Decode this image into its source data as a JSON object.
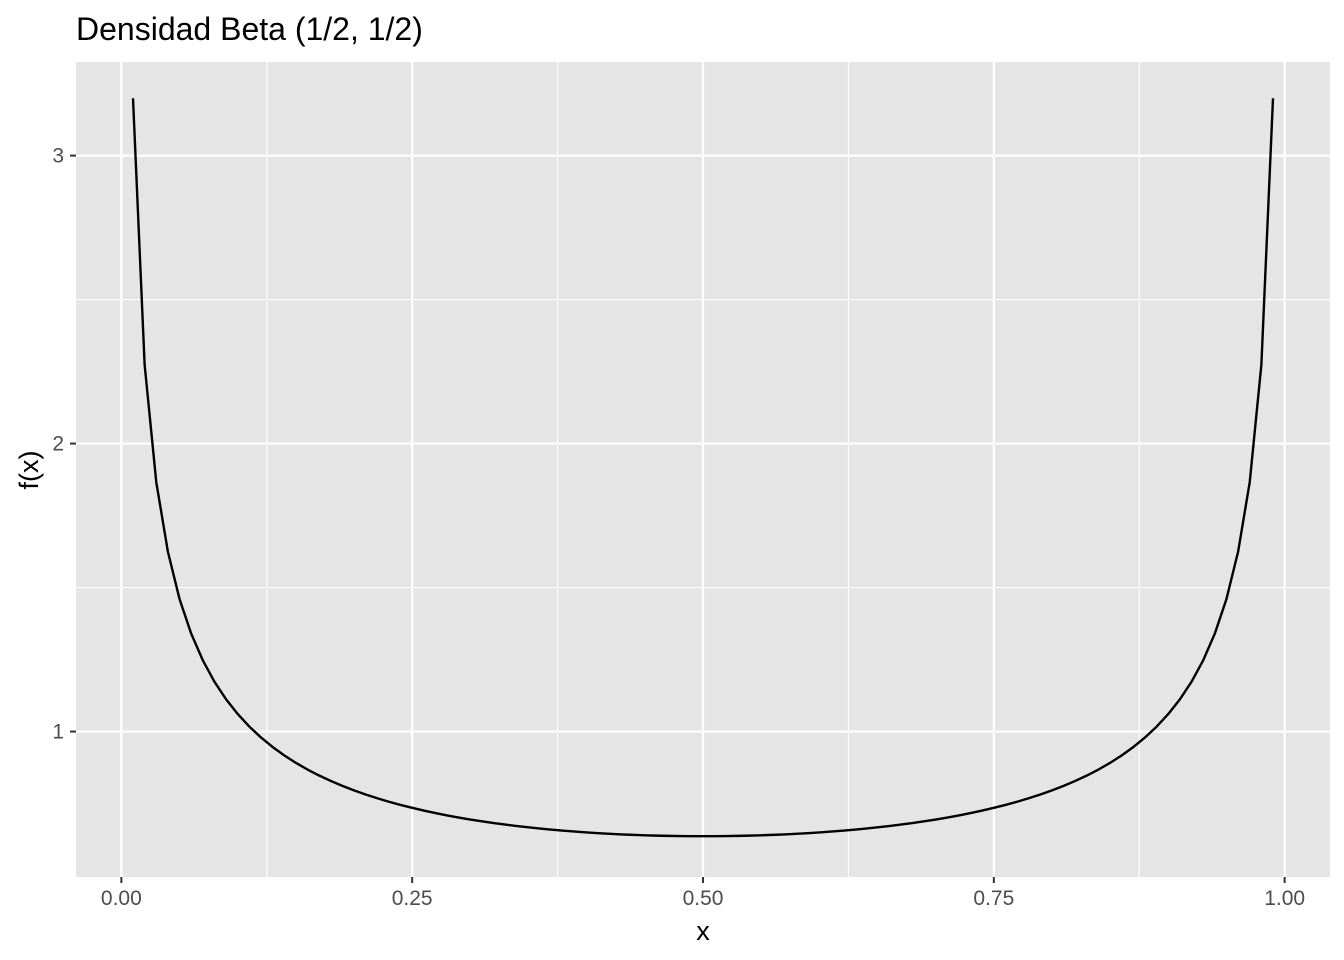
{
  "chart_data": {
    "type": "line",
    "title": "Densidad Beta (1/2, 1/2)",
    "xlabel": "x",
    "ylabel": "f(x)",
    "xlim": [
      -0.039,
      1.039
    ],
    "ylim": [
      0.495,
      3.325
    ],
    "x_ticks": [
      0,
      0.25,
      0.5,
      0.75,
      1
    ],
    "x_tick_labels": [
      "0.00",
      "0.25",
      "0.50",
      "0.75",
      "1.00"
    ],
    "y_ticks": [
      1,
      2,
      3
    ],
    "y_tick_labels": [
      "1",
      "2",
      "3"
    ],
    "grid": true,
    "legend": "none",
    "series": [
      {
        "function": "dbeta(x, 1/2, 1/2)",
        "x_range": [
          0.01,
          0.99
        ],
        "n_points": 99,
        "color": "#000000"
      }
    ]
  },
  "colors": {
    "panel_background": "#e5e5e5",
    "grid_line": "#ffffff",
    "line": "#000000",
    "tick_label": "#4d4d4d",
    "tick_mark": "#333333"
  }
}
